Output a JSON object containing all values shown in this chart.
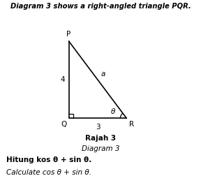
{
  "title_text": "Diagram 3 shows a right-angled triangle PQR.",
  "caption_bold": "Rajah 3",
  "caption_italic": "Diagram 3",
  "instruction_bold": "Hitung kos θ + sin θ.",
  "instruction_italic": "Calculate cos θ + sin θ.",
  "P": [
    0,
    4
  ],
  "Q": [
    0,
    0
  ],
  "R": [
    3,
    0
  ],
  "label_P": "P",
  "label_Q": "Q",
  "label_R": "R",
  "label_side_PQ": "4",
  "label_side_QR": "3",
  "label_side_PR": "a",
  "label_angle": "θ",
  "line_color": "#000000",
  "bg_color": "#ffffff",
  "font_color": "#000000",
  "title_fontsize": 7.2,
  "label_fontsize": 7.5,
  "caption_fontsize": 7.5,
  "instruction_fontsize": 7.5
}
